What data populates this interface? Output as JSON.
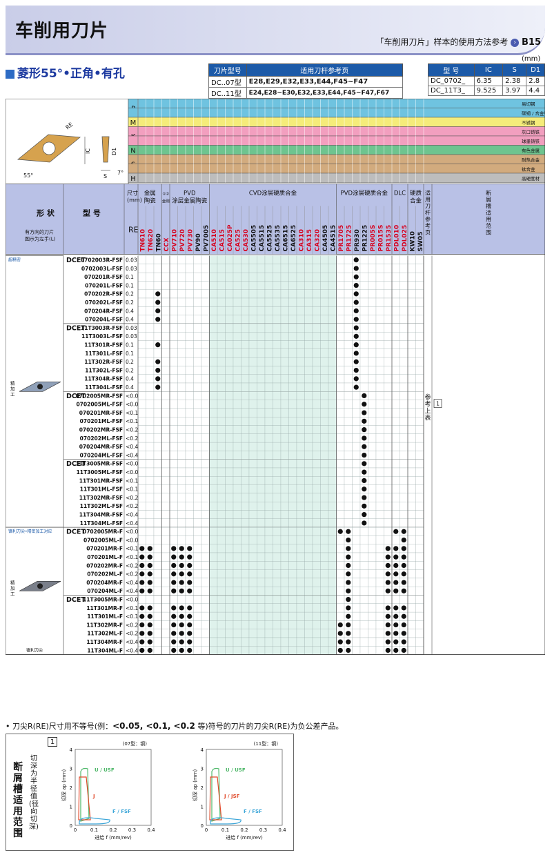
{
  "header": {
    "title": "车削用刀片",
    "ref_text": "「车削用刀片」样本的使用方法参考",
    "ref_page": "B15"
  },
  "subtitle": "菱形55°•正角•有孔",
  "unit": "(mm)",
  "holder_table": {
    "headers": [
      "刀片型号",
      "适用刀杆参考页"
    ],
    "rows": [
      [
        "DC..07型",
        "E28,E29,E32,E33,E44,F45~F47"
      ],
      [
        "DC..11型",
        "E24,E28~E30,E32,E33,E44,F45~F47,F67"
      ]
    ]
  },
  "dim_table": {
    "headers": [
      "型 号",
      "IC",
      "S",
      "D1"
    ],
    "rows": [
      [
        "DC_0702_",
        "6.35",
        "2.38",
        "2.8"
      ],
      [
        "DC_11T3_",
        "9.525",
        "3.97",
        "4.4"
      ]
    ]
  },
  "diagram_labels": {
    "re": "RE",
    "ic": "IC",
    "d1": "D1",
    "s": "S",
    "angle1": "7°",
    "angle2": "55°"
  },
  "materials": [
    {
      "code": "P",
      "labels": [
        "易切钢",
        "碳钢 / 合金钢"
      ],
      "color": "#6fc3e0"
    },
    {
      "code": "M",
      "labels": [
        "不锈钢"
      ],
      "color": "#f5ec7a"
    },
    {
      "code": "K",
      "labels": [
        "灰口铸铁",
        "球墨铸铁"
      ],
      "color": "#f29fbf"
    },
    {
      "code": "N",
      "labels": [
        "有色金属"
      ],
      "color": "#6ec48f"
    },
    {
      "code": "S",
      "labels": [
        "耐热合金",
        "钛合金"
      ],
      "color": "#d2ab7e"
    },
    {
      "code": "H",
      "labels": [
        "高硬度材"
      ],
      "color": "#bdbdbd"
    }
  ],
  "columns": {
    "shape": "形 状",
    "shape_note": "有方向的刀片\n图示为左手(L)",
    "type": "型 号",
    "size": "尺寸\n(mm)",
    "re": "RE",
    "groups": [
      "金属\n陶瓷",
      "①②\n金刚",
      "PVD\n涂层金属陶瓷",
      "CVD涂层硬质合金",
      "PVD涂层硬质合金",
      "DLC",
      "硬质\n合金",
      "适用刀杆参考页",
      "断屑槽适用范围"
    ],
    "grades": [
      {
        "name": "TN610",
        "color": "#d6001c"
      },
      {
        "name": "TN620",
        "color": "#d6001c"
      },
      {
        "name": "TN60",
        "color": "#111"
      },
      {
        "name": "CCX",
        "color": "#d6001c"
      },
      {
        "name": "PV710",
        "color": "#d6001c"
      },
      {
        "name": "PV720",
        "color": "#d6001c"
      },
      {
        "name": "PV730",
        "color": "#d6001c"
      },
      {
        "name": "PV90",
        "color": "#111"
      },
      {
        "name": "PV7005",
        "color": "#111"
      },
      {
        "name": "CA510",
        "color": "#d6001c"
      },
      {
        "name": "CA515",
        "color": "#d6001c"
      },
      {
        "name": "CA025P",
        "color": "#d6001c"
      },
      {
        "name": "CA525",
        "color": "#d6001c"
      },
      {
        "name": "CA530",
        "color": "#d6001c"
      },
      {
        "name": "CA5505",
        "color": "#111"
      },
      {
        "name": "CA5515",
        "color": "#111"
      },
      {
        "name": "CA5525",
        "color": "#111"
      },
      {
        "name": "CA5535",
        "color": "#111"
      },
      {
        "name": "CA6515",
        "color": "#111"
      },
      {
        "name": "CA6525",
        "color": "#111"
      },
      {
        "name": "CA310",
        "color": "#d6001c"
      },
      {
        "name": "CA315",
        "color": "#d6001c"
      },
      {
        "name": "CA320",
        "color": "#d6001c"
      },
      {
        "name": "CA4505",
        "color": "#111"
      },
      {
        "name": "CA4515",
        "color": "#111"
      },
      {
        "name": "PR1705",
        "color": "#d6001c"
      },
      {
        "name": "PR1725",
        "color": "#d6001c"
      },
      {
        "name": "PR930",
        "color": "#111"
      },
      {
        "name": "PR1225",
        "color": "#111"
      },
      {
        "name": "PR005S",
        "color": "#d6001c"
      },
      {
        "name": "PR015S",
        "color": "#d6001c"
      },
      {
        "name": "PR1535",
        "color": "#d6001c"
      },
      {
        "name": "PDL010",
        "color": "#d6001c"
      },
      {
        "name": "PDL025",
        "color": "#d6001c"
      },
      {
        "name": "KW10",
        "color": "#111"
      },
      {
        "name": "SW05",
        "color": "#111"
      }
    ]
  },
  "sections": [
    {
      "tag": "超精密",
      "label": "精\n加\n工",
      "caption": "",
      "groups": [
        {
          "prefix": "DCET",
          "rows": [
            [
              "0702003R-FSF",
              "0.03"
            ],
            [
              "0702003L-FSF",
              "0.03"
            ],
            [
              "070201R-FSF",
              "0.1"
            ],
            [
              "070201L-FSF",
              "0.1"
            ],
            [
              "070202R-FSF",
              "0.2"
            ],
            [
              "070202L-FSF",
              "0.2"
            ],
            [
              "070204R-FSF",
              "0.4"
            ],
            [
              "070204L-FSF",
              "0.4"
            ]
          ]
        },
        {
          "prefix": "DCET",
          "rows": [
            [
              "11T3003R-FSF",
              "0.03"
            ],
            [
              "11T3003L-FSF",
              "0.03"
            ],
            [
              "11T301R-FSF",
              "0.1"
            ],
            [
              "11T301L-FSF",
              "0.1"
            ],
            [
              "11T302R-FSF",
              "0.2"
            ],
            [
              "11T302L-FSF",
              "0.2"
            ],
            [
              "11T304R-FSF",
              "0.4"
            ],
            [
              "11T304L-FSF",
              "0.4"
            ]
          ]
        },
        {
          "prefix": "DCET",
          "rows": [
            [
              "0702005MR-FSF",
              "<0.05"
            ],
            [
              "0702005ML-FSF",
              "<0.05"
            ],
            [
              "070201MR-FSF",
              "<0.1"
            ],
            [
              "070201ML-FSF",
              "<0.1"
            ],
            [
              "070202MR-FSF",
              "<0.2"
            ],
            [
              "070202ML-FSF",
              "<0.2"
            ],
            [
              "070204MR-FSF",
              "<0.4"
            ],
            [
              "070204ML-FSF",
              "<0.4"
            ]
          ]
        },
        {
          "prefix": "DCET",
          "rows": [
            [
              "11T3005MR-FSF",
              "<0.05"
            ],
            [
              "11T3005ML-FSF",
              "<0.05"
            ],
            [
              "11T301MR-FSF",
              "<0.1"
            ],
            [
              "11T301ML-FSF",
              "<0.1"
            ],
            [
              "11T302MR-FSF",
              "<0.2"
            ],
            [
              "11T302ML-FSF",
              "<0.2"
            ],
            [
              "11T304MR-FSF",
              "<0.4"
            ],
            [
              "11T304ML-FSF",
              "<0.4"
            ]
          ]
        }
      ]
    },
    {
      "tag": "锋利刀尖•精密加工对应",
      "label": "精\n加\n工",
      "caption": "锋利刀尖",
      "groups": [
        {
          "prefix": "DCET",
          "rows": [
            [
              "0702005MR-F",
              "<0.05"
            ],
            [
              "0702005ML-F",
              "<0.05"
            ],
            [
              "070201MR-F",
              "<0.1"
            ],
            [
              "070201ML-F",
              "<0.1"
            ],
            [
              "070202MR-F",
              "<0.2"
            ],
            [
              "070202ML-F",
              "<0.2"
            ],
            [
              "070204MR-F",
              "<0.4"
            ],
            [
              "070204ML-F",
              "<0.4"
            ]
          ]
        },
        {
          "prefix": "DCET",
          "rows": [
            [
              "11T3005MR-F",
              "<0.05"
            ],
            [
              "11T301MR-F",
              "<0.1"
            ],
            [
              "11T301ML-F",
              "<0.1"
            ],
            [
              "11T302MR-F",
              "<0.2"
            ],
            [
              "11T302ML-F",
              "<0.2"
            ],
            [
              "11T304MR-F",
              "<0.4"
            ],
            [
              "11T304ML-F",
              "<0.4"
            ]
          ]
        }
      ]
    }
  ],
  "side_ref": "参考上表",
  "side_num": "1",
  "note": "• 刀尖R(RE)尺寸用不等号(例：<0.05, <0.1, <0.2 等)符号的刀片的刀尖R(RE)为负公差产品。",
  "note_parts": {
    "pre": "• 刀尖R(RE)尺寸用不等号(例：",
    "bold": "<0.05, <0.1, <0.2",
    "post": " 等)符号的刀片的刀尖R(RE)为负公差产品。"
  },
  "chipbreaker": {
    "title": "断屑槽适用范围",
    "ylabel_side": "切深为半径值(径向切深)",
    "num": "1",
    "charts": [
      {
        "label": "(07型：钢)",
        "xlabel": "进给 f (mm/rev)",
        "ylabel": "切深 ap (mm)",
        "xticks": [
          "0",
          "0.1",
          "0.2",
          "0.3",
          "0.4"
        ],
        "yticks": [
          "0",
          "1",
          "2",
          "3",
          "4"
        ],
        "series": [
          "U / USF",
          "J",
          "F / FSF"
        ]
      },
      {
        "label": "(11型：钢)",
        "xlabel": "进给 f (mm/rev)",
        "ylabel": "切深 ap (mm)",
        "xticks": [
          "0",
          "0.1",
          "0.2",
          "0.3",
          "0.4"
        ],
        "yticks": [
          "0",
          "1",
          "2",
          "3",
          "4"
        ],
        "series": [
          "U / USF",
          "J / JSF",
          "F / FSF"
        ]
      }
    ]
  }
}
